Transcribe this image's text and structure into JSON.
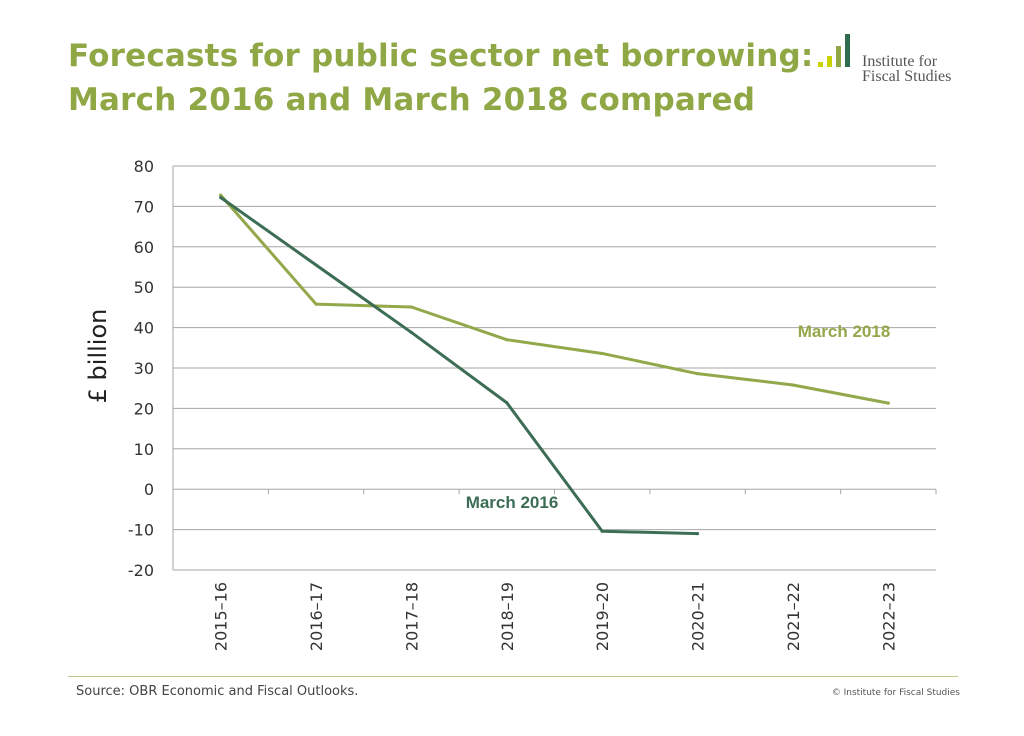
{
  "header": {
    "title_line1": "Forecasts for public sector net borrowing:",
    "title_line2": "March 2016 and March 2018 compared"
  },
  "logo": {
    "line1": "Institute for",
    "line2": "Fiscal Studies",
    "colors": [
      "#c8d400",
      "#c8d400",
      "#8fa845",
      "#2e6b4f"
    ]
  },
  "colors": {
    "title": "#8fa845",
    "march_2018": "#93a84a",
    "march_2016": "#3d6e55",
    "gridline": "#a6a6a6"
  },
  "chart_data": {
    "type": "line",
    "title": "",
    "xlabel": "",
    "ylabel": "£ billion",
    "ylim": [
      -20,
      80
    ],
    "yticks": [
      80,
      70,
      60,
      50,
      40,
      30,
      20,
      10,
      0,
      -10,
      -20
    ],
    "grid": true,
    "categories": [
      "2015–16",
      "2016–17",
      "2017–18",
      "2018–19",
      "2019–20",
      "2020–21",
      "2021–22",
      "2022–23"
    ],
    "series": [
      {
        "name": "March 2018",
        "values": [
          72.8,
          45.8,
          45.1,
          37.0,
          33.6,
          28.6,
          25.8,
          21.3
        ]
      },
      {
        "name": "March 2016",
        "values": [
          72.2,
          55.5,
          38.8,
          21.4,
          -10.4,
          -11.0,
          null,
          null
        ]
      }
    ]
  },
  "footer": {
    "source": "Source: OBR Economic and Fiscal Outlooks.",
    "copyright": "© Institute for Fiscal Studies"
  }
}
